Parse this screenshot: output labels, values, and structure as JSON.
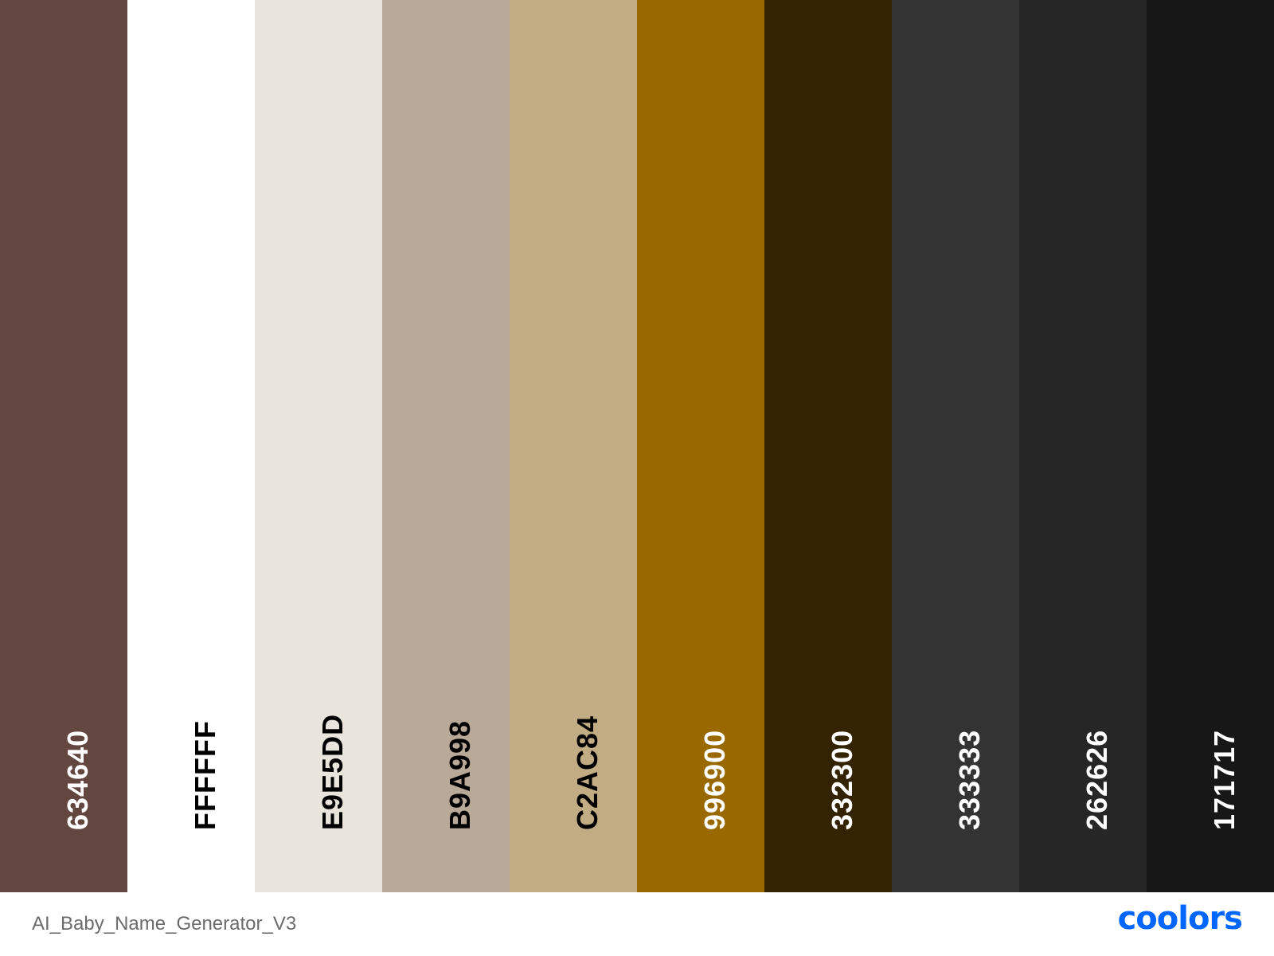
{
  "palette": {
    "swatches": [
      {
        "hex": "634640",
        "color": "#634640",
        "text_color": "#ffffff"
      },
      {
        "hex": "FFFFFF",
        "color": "#FFFFFF",
        "text_color": "#000000"
      },
      {
        "hex": "E9E5DD",
        "color": "#E9E5DD",
        "text_color": "#000000"
      },
      {
        "hex": "B9A998",
        "color": "#B9A998",
        "text_color": "#000000"
      },
      {
        "hex": "C2AC84",
        "color": "#C2AC84",
        "text_color": "#000000"
      },
      {
        "hex": "996900",
        "color": "#996900",
        "text_color": "#ffffff"
      },
      {
        "hex": "332300",
        "color": "#332300",
        "text_color": "#ffffff"
      },
      {
        "hex": "333333",
        "color": "#333333",
        "text_color": "#ffffff"
      },
      {
        "hex": "262626",
        "color": "#262626",
        "text_color": "#ffffff"
      },
      {
        "hex": "171717",
        "color": "#171717",
        "text_color": "#ffffff"
      }
    ]
  },
  "footer": {
    "palette_name": "AI_Baby_Name_Generator_V3",
    "brand": "coolors",
    "brand_color": "#0066FF"
  }
}
